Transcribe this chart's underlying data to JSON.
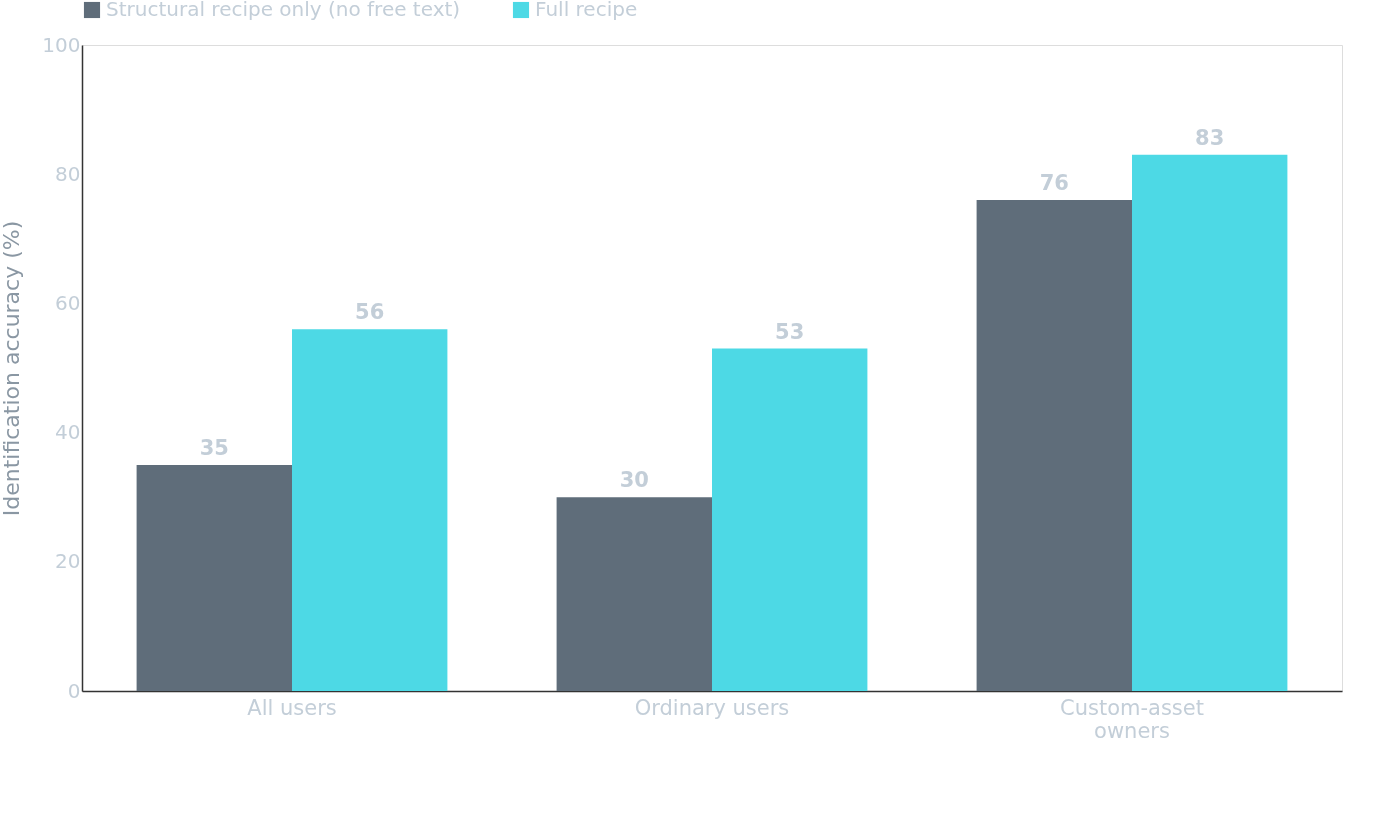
{
  "chart_data": {
    "type": "bar",
    "ylabel": "Identification accuracy (%)",
    "categories": [
      "All users",
      "Ordinary users",
      "Custom-asset owners"
    ],
    "series": [
      {
        "name": "Structural recipe only (no free text)",
        "color": "#5f6d7a",
        "values": [
          35,
          30,
          76
        ]
      },
      {
        "name": "Full recipe",
        "color": "#4dd9e5",
        "values": [
          56,
          53,
          83
        ]
      }
    ],
    "ylim": [
      0,
      100
    ],
    "yticks": [
      0,
      20,
      40,
      60,
      80,
      100
    ],
    "grid": false,
    "legend": "top",
    "data_labels": true
  }
}
